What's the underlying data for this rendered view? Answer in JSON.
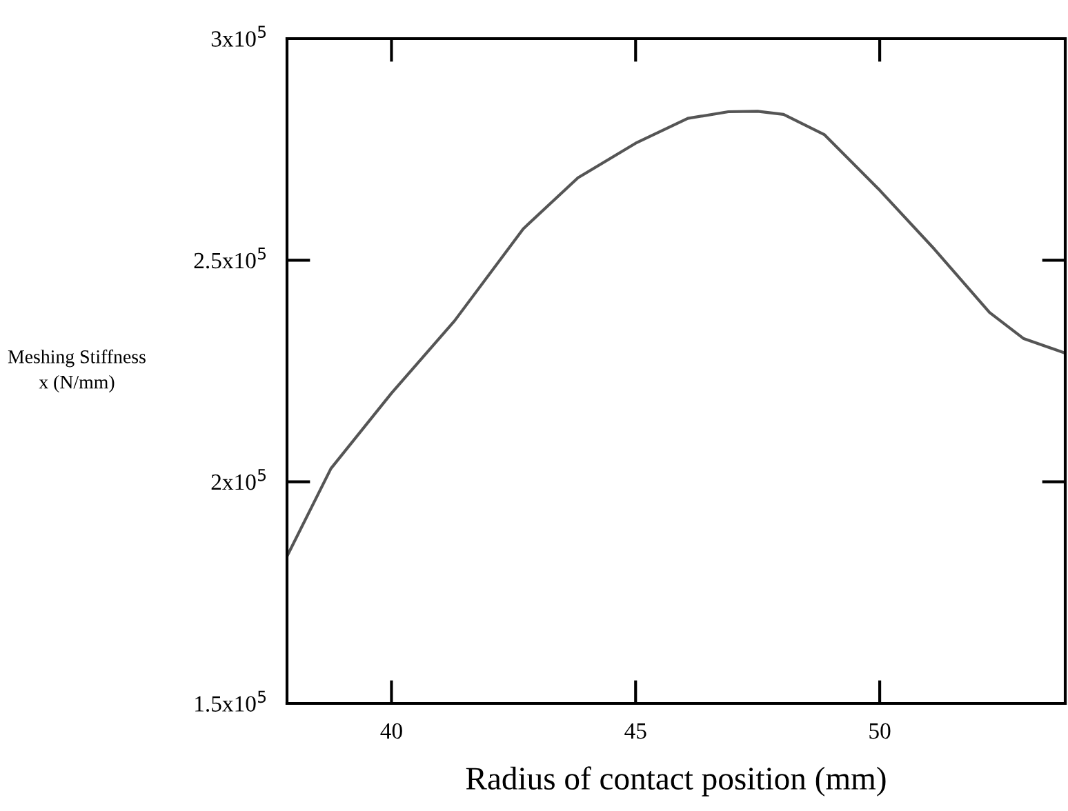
{
  "chart_data": {
    "type": "line",
    "xlabel": "Radius of contact position (mm)",
    "ylabel": "Meshing Stiffness\nx (N/mm)",
    "x": [
      37.86,
      38.76,
      40,
      41.29,
      42.7,
      43.82,
      45,
      46.07,
      46.9,
      47.5,
      48.03,
      48.87,
      50,
      51.12,
      52.25,
      52.95,
      53.76
    ],
    "series": [
      {
        "color": "#555555",
        "values": [
          183200,
          203000,
          220000,
          236300,
          257100,
          268600,
          276400,
          282000,
          283500,
          283600,
          282900,
          278300,
          265800,
          252500,
          238200,
          232300,
          229200
        ]
      }
    ],
    "xlim": [
      37.86,
      53.8
    ],
    "xticks": [
      40,
      45,
      50
    ],
    "ylim": [
      150000,
      300000
    ],
    "yticks": [
      {
        "value": 150000,
        "label": "1.5x10$^{5}$"
      },
      {
        "value": 200000,
        "label": "2x10$^{5}$"
      },
      {
        "value": 250000,
        "label": "2.5x10$^{5}$"
      },
      {
        "value": 300000,
        "label": "3x10$^{5}$"
      }
    ],
    "grid": false,
    "legend": false,
    "marker": "none",
    "line_style": "solid"
  }
}
